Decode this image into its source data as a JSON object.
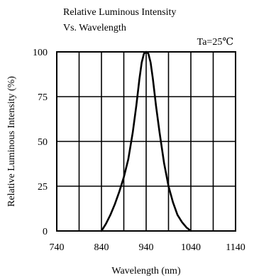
{
  "chart_data": {
    "type": "line",
    "title_line1": "Relative Luminous Intensity",
    "title_line2": "Vs. Wavelength",
    "annotation": "Ta=25℃",
    "xlabel": "Wavelength (nm)",
    "ylabel": "Relative   Luminous   Intensity (%)",
    "xlim": [
      740,
      1140
    ],
    "ylim": [
      0,
      100
    ],
    "x_ticks": [
      740,
      840,
      940,
      1040,
      1140
    ],
    "y_ticks": [
      0,
      25,
      50,
      75,
      100
    ],
    "x_tick_labels": [
      "740",
      "840",
      "940",
      "1040",
      "1140"
    ],
    "y_tick_labels": [
      "0",
      "25",
      "50",
      "75",
      "100"
    ],
    "x_minor_grid": [
      790,
      890,
      990,
      1090
    ],
    "grid": true,
    "line_color": "#000000",
    "series": [
      {
        "x": [
          840,
          850,
          860,
          870,
          880,
          890,
          900,
          910,
          918,
          925,
          930,
          935,
          940,
          945,
          950,
          955,
          962,
          970,
          980,
          990,
          1000,
          1010,
          1020,
          1030,
          1040
        ],
        "y": [
          0,
          4,
          9,
          15,
          22,
          30,
          40,
          55,
          70,
          85,
          94,
          99,
          100,
          99,
          94,
          85,
          70,
          55,
          38,
          25,
          16,
          9,
          5,
          2,
          0
        ]
      }
    ]
  }
}
